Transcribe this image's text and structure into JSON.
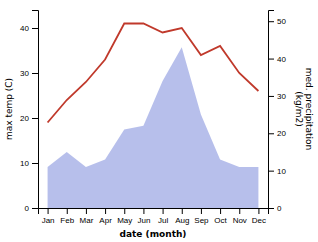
{
  "chart_data": {
    "type": "line",
    "xlabel": "date (month)",
    "ylabel": "max temp (C)",
    "y2label": "med. precipitation\n(kg/m2)",
    "categories": [
      "Jan",
      "Feb",
      "Mar",
      "Apr",
      "May",
      "Jun",
      "Jul",
      "Aug",
      "Sep",
      "Oct",
      "Nov",
      "Dec"
    ],
    "series": [
      {
        "type": "area",
        "axis": "y2",
        "color": "#aab4e8",
        "values": [
          11,
          15,
          11,
          13,
          21,
          22,
          34,
          43,
          25,
          13,
          11,
          11
        ]
      },
      {
        "type": "line",
        "color": "#c0392b",
        "values": [
          19,
          24,
          28,
          33,
          41,
          41,
          39,
          40,
          34,
          36,
          30,
          26
        ]
      }
    ],
    "ylim": [
      0,
      44
    ],
    "yticks": [
      0,
      10,
      20,
      30,
      40
    ],
    "y2lim": [
      0,
      53
    ],
    "y2ticks": [
      0,
      10,
      20,
      30,
      40,
      50
    ],
    "grid": false
  }
}
